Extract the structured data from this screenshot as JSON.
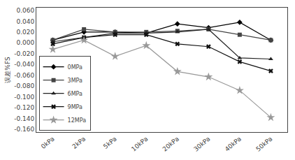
{
  "chart_data": {
    "type": "line",
    "y_label": "误差%FS",
    "categories": [
      "0kPa",
      "2kPa",
      "5kPa",
      "10kPa",
      "20kPa",
      "30kPa",
      "40kPa",
      "50kPa"
    ],
    "series": [
      {
        "name": "0MPa",
        "color": "#000000",
        "marker": "diamond",
        "values": [
          0.005,
          0.02,
          0.02,
          0.018,
          0.035,
          0.028,
          0.038,
          0.005
        ]
      },
      {
        "name": "3MPa",
        "color": "#444444",
        "marker": "square",
        "values": [
          0.005,
          0.025,
          0.02,
          0.02,
          0.022,
          0.025,
          0.015,
          0.005
        ]
      },
      {
        "name": "6MPa",
        "color": "#222222",
        "marker": "triangle-up",
        "values": [
          0.002,
          0.01,
          0.018,
          0.018,
          0.02,
          0.025,
          -0.028,
          -0.03
        ]
      },
      {
        "name": "9MPa",
        "color": "#111111",
        "marker": "x",
        "values": [
          -0.002,
          0.01,
          0.015,
          0.015,
          -0.002,
          -0.007,
          -0.035,
          -0.052
        ]
      },
      {
        "name": "12MPa",
        "color": "#999999",
        "marker": "star",
        "values": [
          -0.012,
          0.005,
          -0.025,
          -0.005,
          -0.053,
          -0.063,
          -0.088,
          -0.138
        ]
      }
    ],
    "ylim": [
      -0.165,
      0.065
    ],
    "yticks": [
      {
        "value": -0.16,
        "label": "-0.160"
      },
      {
        "value": -0.14,
        "label": "-0.140"
      },
      {
        "value": -0.12,
        "label": "-0.120"
      },
      {
        "value": -0.1,
        "label": "-0.100"
      },
      {
        "value": -0.08,
        "label": "-0.080"
      },
      {
        "value": -0.06,
        "label": "-0.060"
      },
      {
        "value": -0.04,
        "label": "-0.040"
      },
      {
        "value": -0.02,
        "label": "-0.020"
      },
      {
        "value": 0.0,
        "label": "0.000"
      },
      {
        "value": 0.02,
        "label": "0.020"
      },
      {
        "value": 0.04,
        "label": "0.040"
      },
      {
        "value": 0.06,
        "label": "0.060"
      }
    ],
    "grid": false,
    "legend": "lower left"
  }
}
